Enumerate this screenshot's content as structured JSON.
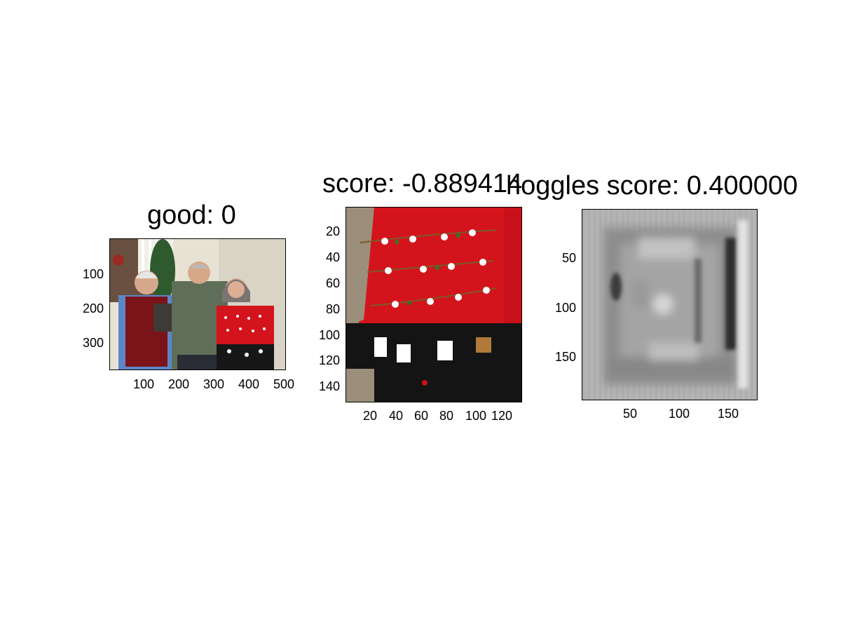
{
  "panels": [
    {
      "title": "good: 0",
      "image": "family-photo",
      "yticks": [
        "100",
        "200",
        "300"
      ],
      "xticks": [
        "100",
        "200",
        "300",
        "400",
        "500"
      ]
    },
    {
      "title": "score: -0.889414",
      "image": "sweater-crop",
      "yticks": [
        "20",
        "40",
        "60",
        "80",
        "100",
        "120",
        "140"
      ],
      "xticks": [
        "20",
        "40",
        "60",
        "80",
        "100",
        "120"
      ]
    },
    {
      "title": "hoggles score: 0.400000",
      "image": "hoggles-grayscale",
      "yticks": [
        "50",
        "100",
        "150"
      ],
      "xticks": [
        "50",
        "100",
        "150"
      ]
    }
  ],
  "colors": {
    "sweater_red": "#d4141c",
    "vest_red": "#7a1418",
    "shirt_blue": "#5d86c8",
    "sweater_green": "#5f6e58",
    "wall": "#e9e3d6"
  }
}
